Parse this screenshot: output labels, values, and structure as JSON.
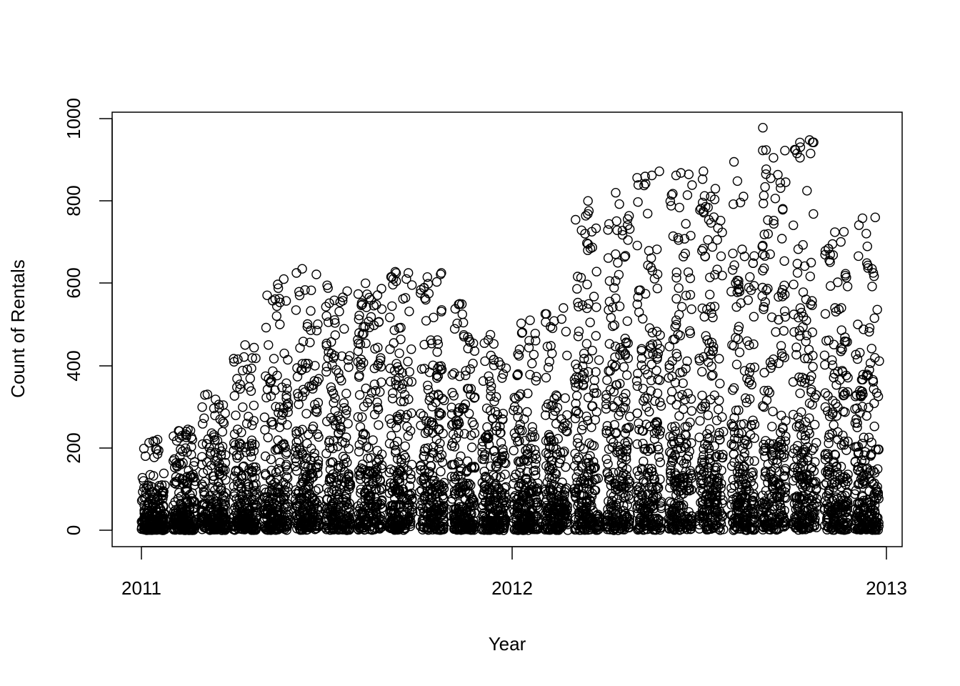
{
  "chart_data": {
    "type": "scatter",
    "title": "",
    "xlabel": "Year",
    "ylabel": "Count of Rentals",
    "xlim": [
      "2011-01-01",
      "2013-01-01"
    ],
    "ylim": [
      0,
      1000
    ],
    "x_ticks": [
      "2011",
      "2012",
      "2013"
    ],
    "y_ticks": [
      "0",
      "200",
      "400",
      "600",
      "800",
      "1000"
    ],
    "marker": "open-circle",
    "grid": false,
    "legend": "none",
    "point_color": "#000000",
    "series": [
      {
        "months": [
          {
            "month": "2011-01",
            "typical_max": 110,
            "max": 220
          },
          {
            "month": "2011-02",
            "typical_max": 170,
            "max": 245
          },
          {
            "month": "2011-03",
            "typical_max": 190,
            "max": 330
          },
          {
            "month": "2011-04",
            "typical_max": 220,
            "max": 450
          },
          {
            "month": "2011-05",
            "typical_max": 330,
            "max": 610
          },
          {
            "month": "2011-06",
            "typical_max": 420,
            "max": 635
          },
          {
            "month": "2011-07",
            "typical_max": 440,
            "max": 595
          },
          {
            "month": "2011-08",
            "typical_max": 430,
            "max": 600
          },
          {
            "month": "2011-09",
            "typical_max": 420,
            "max": 628
          },
          {
            "month": "2011-10",
            "typical_max": 400,
            "max": 625
          },
          {
            "month": "2011-11",
            "typical_max": 330,
            "max": 550
          },
          {
            "month": "2011-12",
            "typical_max": 290,
            "max": 475
          },
          {
            "month": "2012-01",
            "typical_max": 290,
            "max": 510
          },
          {
            "month": "2012-02",
            "typical_max": 320,
            "max": 540
          },
          {
            "month": "2012-03",
            "typical_max": 420,
            "max": 800
          },
          {
            "month": "2012-04",
            "typical_max": 500,
            "max": 820
          },
          {
            "month": "2012-05",
            "typical_max": 530,
            "max": 872
          },
          {
            "month": "2012-06",
            "typical_max": 580,
            "max": 868
          },
          {
            "month": "2012-07",
            "typical_max": 560,
            "max": 872
          },
          {
            "month": "2012-08",
            "typical_max": 590,
            "max": 895
          },
          {
            "month": "2012-09",
            "typical_max": 620,
            "max": 978
          },
          {
            "month": "2012-10",
            "typical_max": 560,
            "max": 948
          },
          {
            "month": "2012-11",
            "typical_max": 470,
            "max": 725
          },
          {
            "month": "2012-12",
            "typical_max": 420,
            "max": 760
          }
        ]
      }
    ]
  }
}
